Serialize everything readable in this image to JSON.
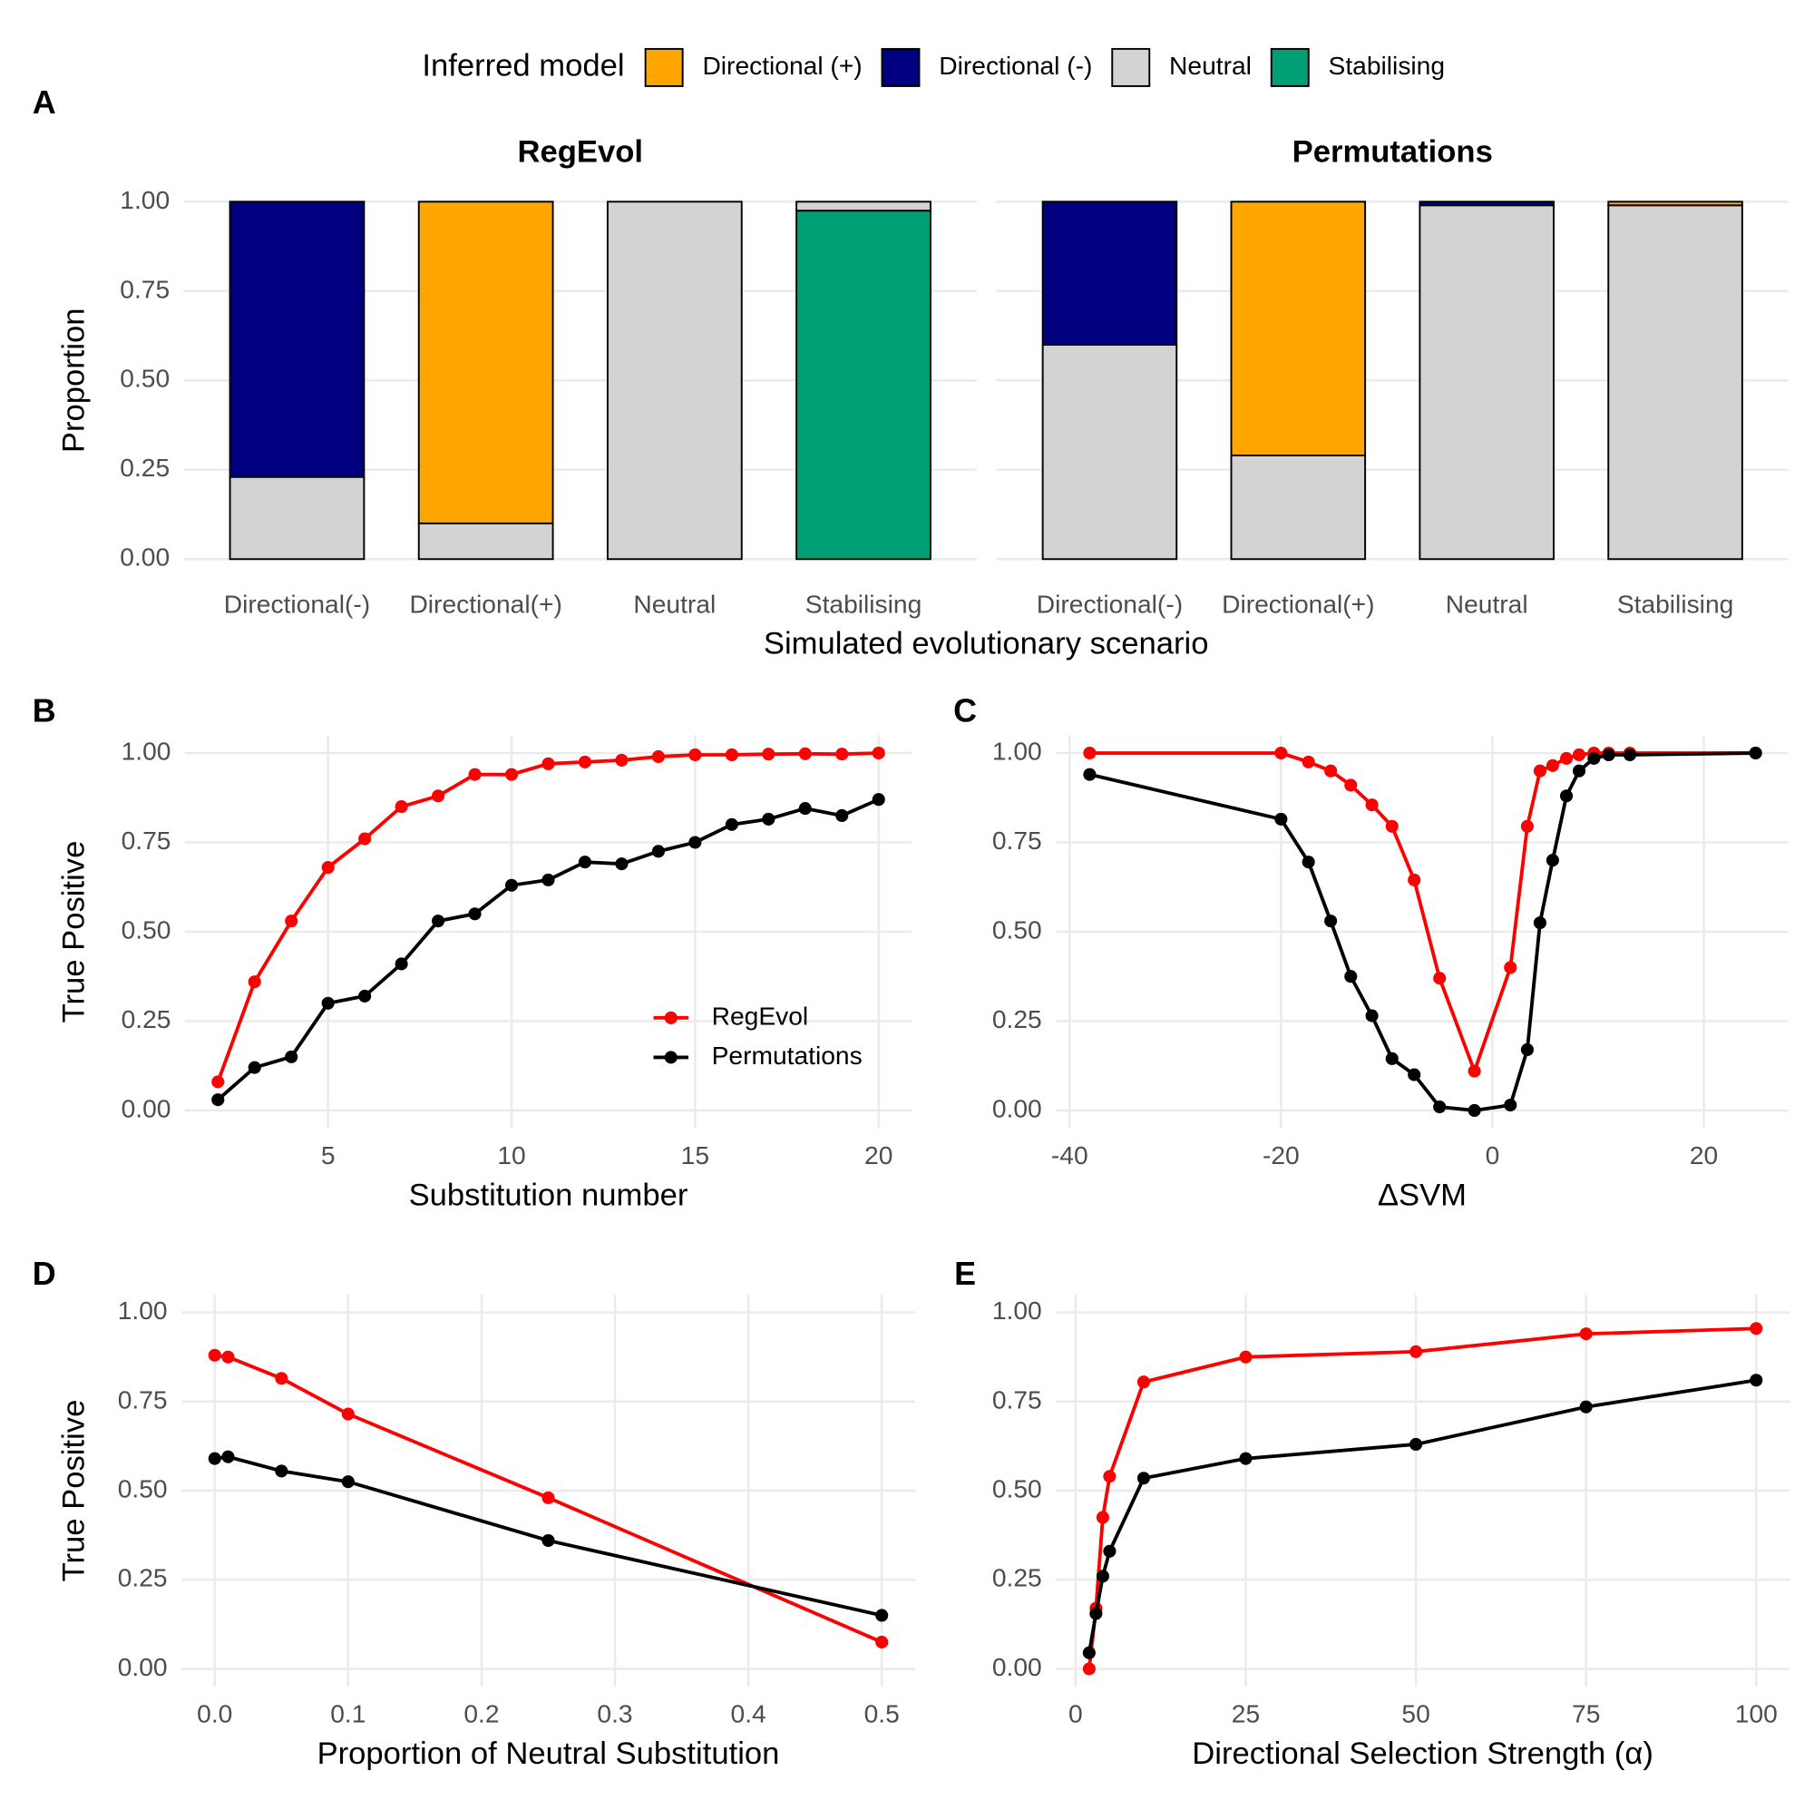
{
  "chart_data": [
    {
      "type": "bar",
      "stacked": true,
      "panel": "A",
      "title": "RegEvol",
      "ylabel": "Proportion",
      "xlabel": "Simulated evolutionary scenario",
      "legend_title": "Inferred model",
      "categories": [
        "Directional(-)",
        "Directional(+)",
        "Neutral",
        "Stabilising"
      ],
      "series": [
        {
          "name": "Directional (+)",
          "color": "#ffa500",
          "values": [
            0,
            0.9,
            0,
            0
          ]
        },
        {
          "name": "Directional (-)",
          "color": "#000080",
          "values": [
            0.77,
            0,
            0,
            0
          ]
        },
        {
          "name": "Neutral",
          "color": "#d3d3d3",
          "values": [
            0.23,
            0.1,
            1.0,
            0.025
          ]
        },
        {
          "name": "Stabilising",
          "color": "#009e73",
          "values": [
            0,
            0,
            0,
            0.975
          ]
        }
      ],
      "ylim": [
        -0.05,
        1.05
      ],
      "yticks": [
        {
          "value": 0,
          "label": "0.00"
        },
        {
          "value": 0.25,
          "label": "0.25"
        },
        {
          "value": 0.5,
          "label": "0.50"
        },
        {
          "value": 0.75,
          "label": "0.75"
        },
        {
          "value": 1,
          "label": "1.00"
        }
      ],
      "grid": true
    },
    {
      "type": "bar",
      "stacked": true,
      "title": "Permutations",
      "categories": [
        "Directional(-)",
        "Directional(+)",
        "Neutral",
        "Stabilising"
      ],
      "series": [
        {
          "color": "#ffa500",
          "values": [
            0,
            0.71,
            0,
            0.01
          ]
        },
        {
          "color": "#000080",
          "values": [
            0.4,
            0,
            0.01,
            0
          ]
        },
        {
          "color": "#d3d3d3",
          "values": [
            0.6,
            0.29,
            0.99,
            0.99
          ]
        },
        {
          "color": "#009e73",
          "values": [
            0,
            0,
            0,
            0
          ]
        }
      ],
      "ylim": [
        -0.05,
        1.05
      ],
      "grid": true
    },
    {
      "type": "line",
      "panel": "B",
      "ylabel": "True Positive",
      "xlabel": "Substitution number",
      "x": [
        2,
        3,
        4,
        5,
        6,
        7,
        8,
        9,
        10,
        11,
        12,
        13,
        14,
        15,
        16,
        17,
        18,
        19,
        20
      ],
      "series": [
        {
          "name": "RegEvol",
          "color": "#ff0000",
          "values": [
            0.08,
            0.36,
            0.53,
            0.68,
            0.76,
            0.85,
            0.88,
            0.94,
            0.94,
            0.97,
            0.975,
            0.98,
            0.99,
            0.995,
            0.995,
            0.997,
            0.998,
            0.997,
            1.0
          ]
        },
        {
          "name": "Permutations",
          "color": "#000000",
          "values": [
            0.03,
            0.12,
            0.15,
            0.3,
            0.32,
            0.41,
            0.53,
            0.55,
            0.63,
            0.645,
            0.695,
            0.69,
            0.725,
            0.75,
            0.8,
            0.815,
            0.845,
            0.825,
            0.87
          ]
        }
      ],
      "xlim": [
        1.1,
        20.9
      ],
      "xticks": [
        5,
        10,
        15,
        20
      ],
      "ylim": [
        -0.05,
        1.05
      ],
      "yticks": [
        {
          "value": 0,
          "label": "0.00"
        },
        {
          "value": 0.25,
          "label": "0.25"
        },
        {
          "value": 0.5,
          "label": "0.50"
        },
        {
          "value": 0.75,
          "label": "0.75"
        },
        {
          "value": 1,
          "label": "1.00"
        }
      ],
      "grid": true,
      "legend_position": "bottom-right"
    },
    {
      "type": "line",
      "panel": "C",
      "xlabel": "ΔSVM",
      "x": [
        -38.1,
        -20,
        -17.4,
        -15.3,
        -13.4,
        -11.4,
        -9.5,
        -7.4,
        -5,
        -1.7,
        1.7,
        3.3,
        4.5,
        5.7,
        7,
        8.2,
        9.6,
        11,
        13,
        24.9
      ],
      "series": [
        {
          "color": "#ff0000",
          "values": [
            1.0,
            1.0,
            0.975,
            0.95,
            0.91,
            0.855,
            0.795,
            0.645,
            0.37,
            0.11,
            0.4,
            0.795,
            0.95,
            0.965,
            0.985,
            0.995,
            1.0,
            1.0,
            1.0,
            1.0
          ]
        },
        {
          "color": "#000000",
          "values": [
            0.94,
            0.815,
            0.695,
            0.53,
            0.375,
            0.265,
            0.145,
            0.1,
            0.01,
            0.0,
            0.015,
            0.17,
            0.525,
            0.7,
            0.88,
            0.95,
            0.985,
            0.995,
            0.995,
            1.0
          ]
        }
      ],
      "xlim": [
        -41.3,
        28
      ],
      "xticks": [
        -40,
        -20,
        0,
        20
      ],
      "ylim": [
        -0.05,
        1.05
      ],
      "yticks": [
        {
          "value": 0,
          "label": "0.00"
        },
        {
          "value": 0.25,
          "label": "0.25"
        },
        {
          "value": 0.5,
          "label": "0.50"
        },
        {
          "value": 0.75,
          "label": "0.75"
        },
        {
          "value": 1,
          "label": "1.00"
        }
      ],
      "grid": true
    },
    {
      "type": "line",
      "panel": "D",
      "ylabel": "True Positive",
      "xlabel": "Proportion of Neutral Substitution",
      "x": [
        0,
        0.01,
        0.05,
        0.1,
        0.25,
        0.5
      ],
      "series": [
        {
          "color": "#ff0000",
          "values": [
            0.88,
            0.875,
            0.815,
            0.715,
            0.48,
            0.075
          ]
        },
        {
          "color": "#000000",
          "values": [
            0.59,
            0.595,
            0.555,
            0.525,
            0.36,
            0.15
          ]
        }
      ],
      "xlim": [
        -0.025,
        0.525
      ],
      "xticks": [
        {
          "value": 0,
          "label": "0.0"
        },
        0.1,
        0.2,
        0.3,
        0.4,
        0.5
      ],
      "ylim": [
        -0.05,
        1.05
      ],
      "yticks": [
        {
          "value": 0,
          "label": "0.00"
        },
        {
          "value": 0.25,
          "label": "0.25"
        },
        {
          "value": 0.5,
          "label": "0.50"
        },
        {
          "value": 0.75,
          "label": "0.75"
        },
        {
          "value": 1,
          "label": "1.00"
        }
      ],
      "grid": true
    },
    {
      "type": "line",
      "panel": "E",
      "xlabel": "Directional Selection Strength (α)",
      "x": [
        2,
        3,
        4,
        5,
        10,
        25,
        50,
        75,
        100
      ],
      "series": [
        {
          "color": "#ff0000",
          "values": [
            0.0,
            0.17,
            0.425,
            0.54,
            0.805,
            0.875,
            0.89,
            0.94,
            0.955
          ]
        },
        {
          "color": "#000000",
          "values": [
            0.045,
            0.155,
            0.26,
            0.33,
            0.535,
            0.59,
            0.63,
            0.735,
            0.81
          ]
        }
      ],
      "xlim": [
        -2.9,
        104.9
      ],
      "xticks": [
        0,
        25,
        50,
        75,
        100
      ],
      "ylim": [
        -0.05,
        1.05
      ],
      "yticks": [
        {
          "value": 0,
          "label": "0.00"
        },
        {
          "value": 0.25,
          "label": "0.25"
        },
        {
          "value": 0.5,
          "label": "0.50"
        },
        {
          "value": 0.75,
          "label": "0.75"
        },
        {
          "value": 1,
          "label": "1.00"
        }
      ],
      "grid": true
    }
  ]
}
